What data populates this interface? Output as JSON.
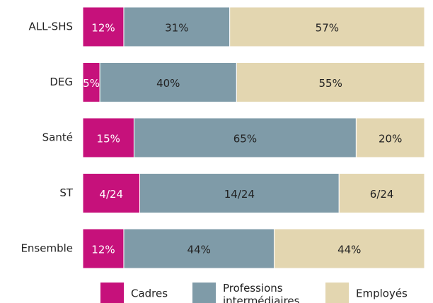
{
  "chart_data": {
    "type": "stacked-bar-horizontal",
    "categories": [
      "ALL-SHS",
      "DEG",
      "Santé",
      "ST",
      "Ensemble"
    ],
    "xlim": [
      0,
      100
    ],
    "legend": "bottom",
    "series": [
      {
        "name": "Cadres",
        "color": "#c6117b",
        "values": [
          12,
          5,
          15,
          16.67,
          12
        ],
        "value_labels": [
          "12%",
          "5%",
          "15%",
          "4/24",
          "12%"
        ]
      },
      {
        "name": "Professions intermédiaires",
        "color": "#7f9ba8",
        "values": [
          31,
          40,
          65,
          58.33,
          44
        ],
        "value_labels": [
          "31%",
          "40%",
          "65%",
          "14/24",
          "44%"
        ]
      },
      {
        "name": "Employés",
        "color": "#e3d6b0",
        "values": [
          57,
          55,
          20,
          25,
          44
        ],
        "value_labels": [
          "57%",
          "55%",
          "20%",
          "6/24",
          "44%"
        ]
      }
    ]
  }
}
